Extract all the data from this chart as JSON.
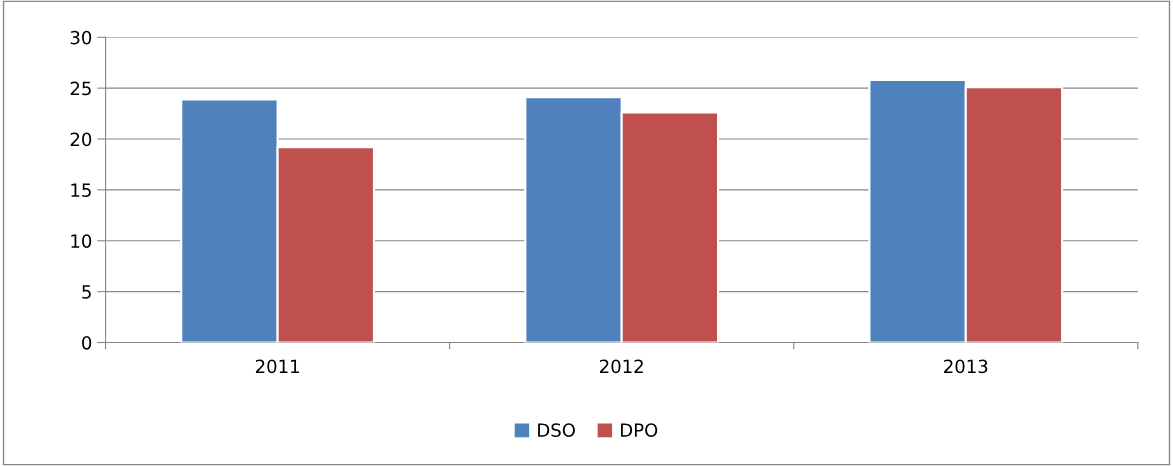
{
  "chart_data": {
    "type": "bar",
    "categories": [
      "2011",
      "2012",
      "2013"
    ],
    "series": [
      {
        "name": "DSO",
        "color": "#4f81bd",
        "values": [
          23.9,
          24.1,
          25.8
        ]
      },
      {
        "name": "DPO",
        "color": "#c0504d",
        "values": [
          19.2,
          22.6,
          25.1
        ]
      }
    ],
    "ylim": [
      0,
      30
    ],
    "yticks": [
      0,
      5,
      10,
      15,
      20,
      25,
      30
    ],
    "grid": "y",
    "legend": "bottom"
  }
}
